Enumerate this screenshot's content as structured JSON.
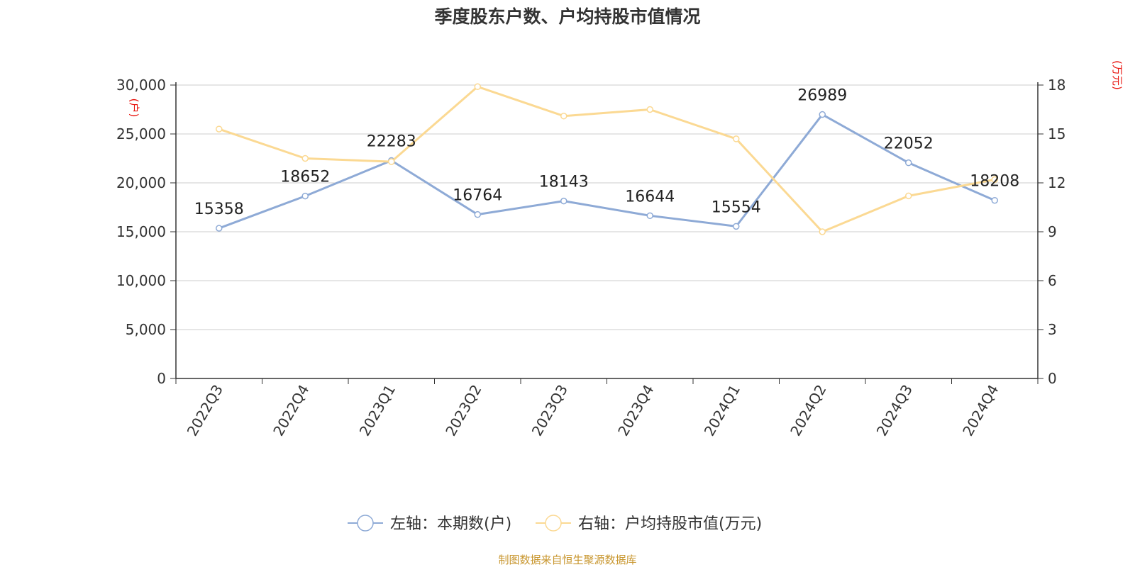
{
  "chart_data": {
    "type": "line",
    "title": "季度股东户数、户均持股市值情况",
    "categories": [
      "2022Q3",
      "2022Q4",
      "2023Q1",
      "2023Q2",
      "2023Q3",
      "2023Q4",
      "2024Q1",
      "2024Q2",
      "2024Q3",
      "2024Q4"
    ],
    "y_left": {
      "unit_label": "(户)",
      "range": [
        0,
        30000
      ],
      "ticks": [
        "0",
        "5,000",
        "10,000",
        "15,000",
        "20,000",
        "25,000",
        "30,000"
      ]
    },
    "y_right": {
      "unit_label": "(万元)",
      "range": [
        0,
        18
      ],
      "ticks": [
        "0",
        "3",
        "6",
        "9",
        "12",
        "15",
        "18"
      ]
    },
    "grid": true,
    "legend_position": "bottom",
    "series": [
      {
        "name": "左轴：本期数(户)",
        "axis": "left",
        "color": "#8eaad6",
        "values": [
          15358,
          18652,
          22283,
          16764,
          18143,
          16644,
          15554,
          26989,
          22052,
          18208
        ],
        "labels": [
          "15358",
          "18652",
          "22283",
          "16764",
          "18143",
          "16644",
          "15554",
          "26989",
          "22052",
          "18208"
        ]
      },
      {
        "name": "右轴：户均持股市值(万元)",
        "axis": "right",
        "color": "#fbd993",
        "values": [
          15.3,
          13.5,
          13.3,
          17.9,
          16.1,
          16.5,
          14.7,
          9.0,
          11.2,
          12.2
        ]
      }
    ],
    "source": "制图数据来自恒生聚源数据库"
  }
}
